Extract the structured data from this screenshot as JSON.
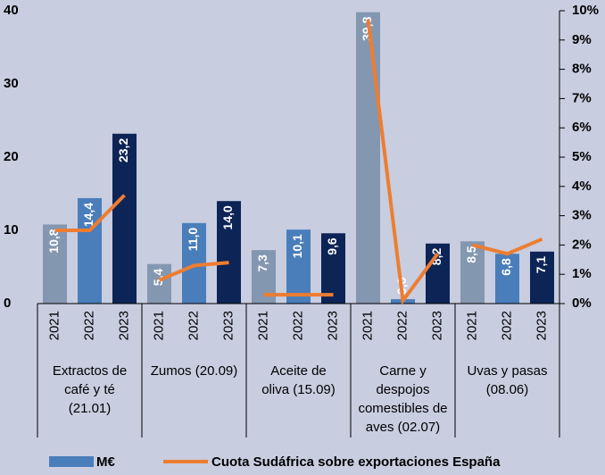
{
  "chart_data": {
    "type": "bar_line",
    "categories": [
      "2021",
      "2022",
      "2023",
      "2021",
      "2022",
      "2023",
      "2021",
      "2022",
      "2023",
      "2021",
      "2022",
      "2023",
      "2021",
      "2022",
      "2023"
    ],
    "groups": [
      [
        "Extractos de",
        "café y té",
        "(21.01)"
      ],
      [
        "Zumos (20.09)"
      ],
      [
        "Aceite de",
        "oliva  (15.09)"
      ],
      [
        "Carne y",
        "despojos",
        "comestibles de",
        "aves (02.07)"
      ],
      [
        "Uvas y pasas",
        "(08.06)"
      ]
    ],
    "series": [
      {
        "name": "M€",
        "color": "#4a7ebb",
        "bar_colors": [
          "#8497b0",
          "#4a7ebb",
          "#0d2456"
        ],
        "values": [
          10.8,
          14.4,
          23.2,
          5.4,
          11.0,
          14.0,
          7.3,
          10.1,
          9.6,
          39.8,
          0.6,
          8.2,
          8.5,
          6.8,
          7.1
        ],
        "value_labels": [
          "10,8",
          "14,4",
          "23,2",
          "5,4",
          "11,0",
          "14,0",
          "7,3",
          "10,1",
          "9,6",
          "39,8",
          "0,6",
          "8,2",
          "8,5",
          "6,8",
          "7,1"
        ]
      },
      {
        "name": "Cuota Sudáfrica sobre exportaciones España",
        "color": "#ed7d31",
        "axis": "y2",
        "values": [
          2.5,
          2.5,
          3.7,
          0.8,
          1.3,
          1.4,
          0.3,
          0.3,
          0.3,
          9.7,
          0.1,
          1.7,
          2.0,
          1.7,
          2.2
        ]
      }
    ],
    "ylim": [
      0,
      40
    ],
    "yticks": [
      0,
      10,
      20,
      30,
      40
    ],
    "y2lim": [
      0,
      10
    ],
    "y2ticks": [
      {
        "value": 0,
        "label": "0%"
      },
      {
        "value": 1,
        "label": "1%"
      },
      {
        "value": 2,
        "label": "2%"
      },
      {
        "value": 3,
        "label": "3%"
      },
      {
        "value": 4,
        "label": "4%"
      },
      {
        "value": 5,
        "label": "5%"
      },
      {
        "value": 6,
        "label": "6%"
      },
      {
        "value": 7,
        "label": "7%"
      },
      {
        "value": 8,
        "label": "8%"
      },
      {
        "value": 9,
        "label": "9%"
      },
      {
        "value": 10,
        "label": "10%"
      }
    ]
  }
}
